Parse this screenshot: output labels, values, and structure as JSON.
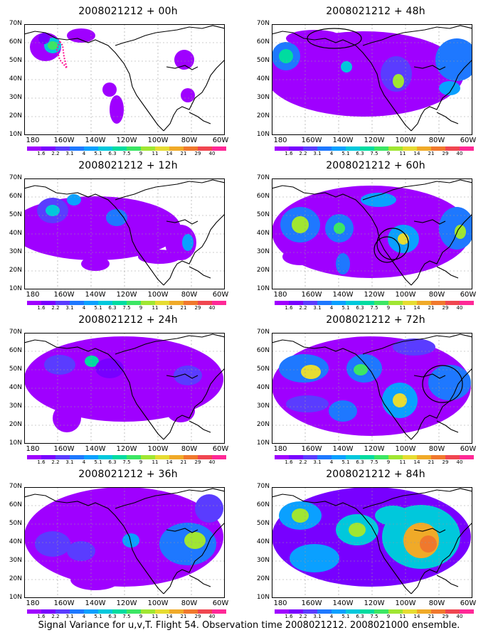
{
  "panels": [
    {
      "title": "2008021212 + 00h",
      "lead": "00h"
    },
    {
      "title": "2008021212 + 48h",
      "lead": "48h"
    },
    {
      "title": "2008021212 + 12h",
      "lead": "12h"
    },
    {
      "title": "2008021212 + 60h",
      "lead": "60h"
    },
    {
      "title": "2008021212 + 24h",
      "lead": "24h"
    },
    {
      "title": "2008021212 + 72h",
      "lead": "72h"
    },
    {
      "title": "2008021212 + 36h",
      "lead": "36h"
    },
    {
      "title": "2008021212 + 84h",
      "lead": "84h"
    }
  ],
  "lat_labels": [
    "70N",
    "60N",
    "50N",
    "40N",
    "30N",
    "20N",
    "10N"
  ],
  "lon_labels": [
    "180",
    "160W",
    "140W",
    "120W",
    "100W",
    "80W",
    "60W"
  ],
  "colorbar": {
    "labels": [
      "1.6",
      "2.2",
      "3.1",
      "4",
      "5.1",
      "6.3",
      "7.5",
      "9",
      "11",
      "14",
      "21",
      "29",
      "40"
    ],
    "colors": [
      "#9f00ff",
      "#7800ff",
      "#5a3cff",
      "#1e78ff",
      "#0aa0ff",
      "#00c8dc",
      "#00dca0",
      "#3ce664",
      "#a0e632",
      "#e6dc32",
      "#f0aa28",
      "#f0782d",
      "#f04650",
      "#ff2896"
    ]
  },
  "caption": "Signal Variance for u,v,T. Flight 54. Observation time 2008021212. 2008021000 ensemble."
}
